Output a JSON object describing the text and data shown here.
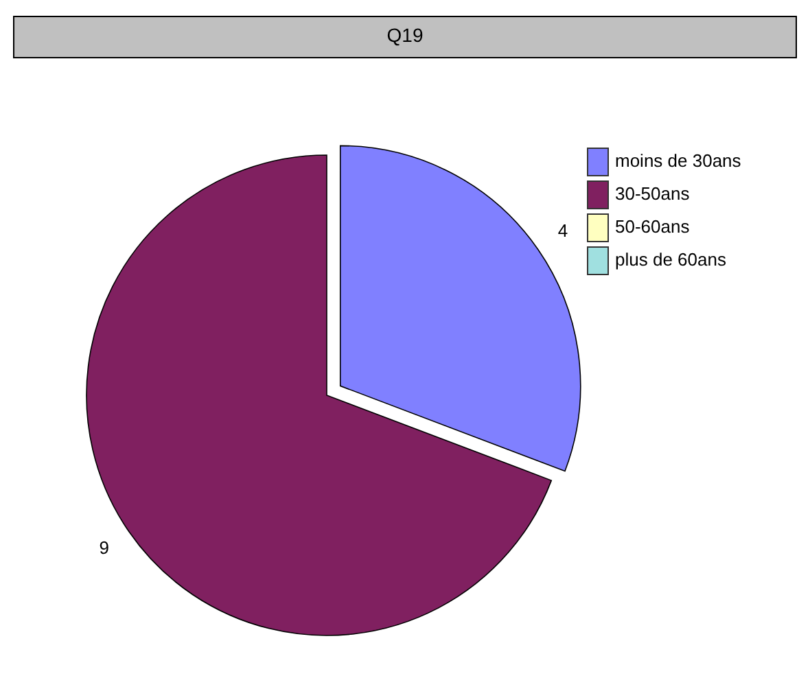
{
  "chart_data": {
    "type": "pie",
    "title": "Q19",
    "categories": [
      "moins de 30ans",
      "30-50ans",
      "50-60ans",
      "plus de 60ans"
    ],
    "values": [
      4,
      9,
      0,
      0
    ],
    "colors": [
      "#8080ff",
      "#802060",
      "#ffffc0",
      "#a0e0e0"
    ],
    "value_labels": [
      "4",
      "9",
      null,
      null
    ],
    "legend": "right"
  }
}
